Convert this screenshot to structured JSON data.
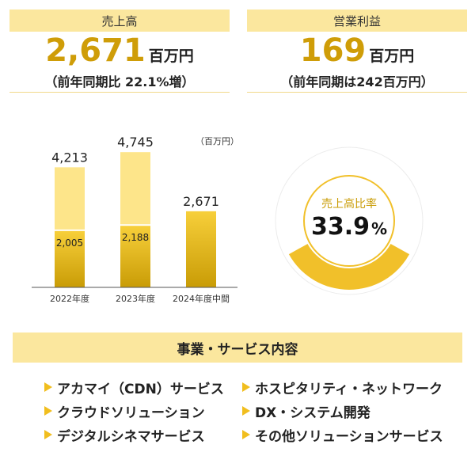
{
  "kpis": {
    "sales": {
      "title": "売上高",
      "value": "2,671",
      "unit": "百万円",
      "sub": "（前年同期比 22.1%増）"
    },
    "profit": {
      "title": "営業利益",
      "value": "169",
      "unit": "百万円",
      "sub": "（前年同期は242百万円）"
    }
  },
  "chart_data": [
    {
      "type": "bar",
      "unit_label": "（百万円）",
      "categories": [
        "2022年度",
        "2023年度",
        "2024年度中間"
      ],
      "series": [
        {
          "values": [
            2005,
            2188,
            null
          ]
        },
        {
          "values": [
            2208,
            2557,
            null
          ]
        }
      ],
      "totals": [
        4213,
        4745,
        2671
      ],
      "total_labels": [
        "4,213",
        "4,745",
        "2,671"
      ],
      "inner_labels": [
        "2,005",
        "2,188",
        ""
      ],
      "single_values": [
        null,
        null,
        2671
      ],
      "ylim": [
        0,
        5000
      ],
      "colors": {
        "top": "#fde58a",
        "bottom_top": "#f7cf3a",
        "bottom_bottom": "#c99c06"
      }
    },
    {
      "type": "pie",
      "label": "売上高比率",
      "value_text": "33.9",
      "value_unit": "%",
      "value": 33.9,
      "colors": {
        "filled": "#f1c02a",
        "rest": "#ffffff",
        "ring_border": "#ececec"
      }
    }
  ],
  "services": {
    "title": "事業・サービス内容",
    "left": [
      "アカマイ（CDN）サービス",
      "クラウドソリューション",
      "デジタルシネマサービス"
    ],
    "right": [
      "ホスピタリティ・ネットワーク",
      "DX・システム開発",
      "その他ソリューションサービス"
    ]
  }
}
